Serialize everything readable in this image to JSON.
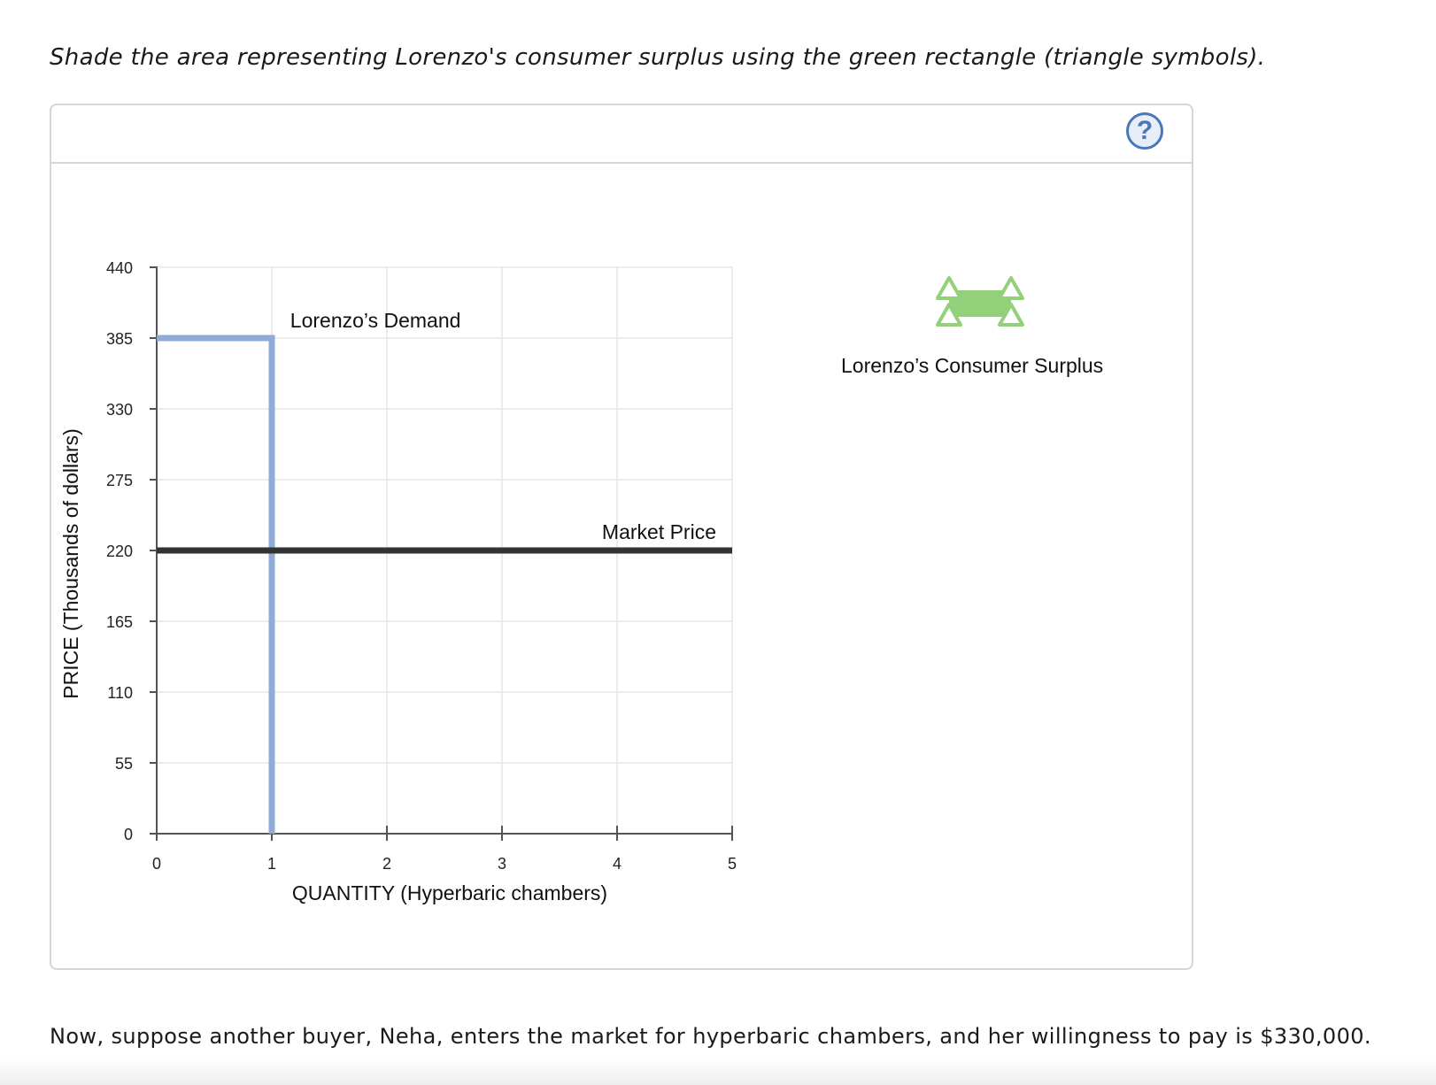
{
  "instruction": "Shade the area representing Lorenzo's consumer surplus using the green rectangle (triangle symbols).",
  "help_button": {
    "label": "?",
    "icon": "help-icon"
  },
  "tool": {
    "label": "Lorenzo’s Consumer Surplus",
    "icon": "green-rectangle-triangle-symbols-icon",
    "color": "#93d07a"
  },
  "footer": "Now, suppose another buyer, Neha, enters the market for hyperbaric chambers, and her willingness to pay is $330,000.",
  "chart_data": {
    "type": "line",
    "xlabel": "QUANTITY (Hyperbaric chambers)",
    "ylabel": "PRICE (Thousands of dollars)",
    "xlim": [
      0,
      5
    ],
    "ylim": [
      0,
      440
    ],
    "x_ticks": [
      0,
      1,
      2,
      3,
      4,
      5
    ],
    "y_ticks": [
      0,
      55,
      110,
      165,
      220,
      275,
      330,
      385,
      440
    ],
    "grid": true,
    "series": [
      {
        "name": "Lorenzo’s Demand",
        "color": "#8eacd6",
        "points": [
          [
            0,
            385
          ],
          [
            1,
            385
          ],
          [
            1,
            0
          ]
        ],
        "label": "Lorenzo’s Demand"
      },
      {
        "name": "Market Price",
        "color": "#333333",
        "points": [
          [
            0,
            220
          ],
          [
            5,
            220
          ]
        ],
        "label": "Market Price"
      }
    ]
  }
}
